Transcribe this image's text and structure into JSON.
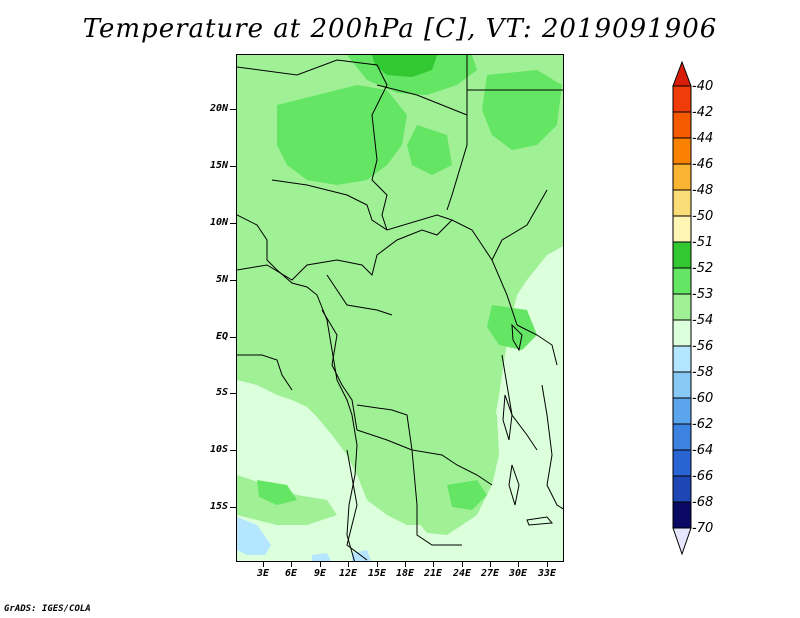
{
  "title": "Temperature at 200hPa [C], VT: 2019091906",
  "credit": "GrADS: IGES/COLA",
  "map": {
    "lat_labels": [
      "20N",
      "15N",
      "10N",
      "5N",
      "EQ",
      "5S",
      "10S",
      "15S"
    ],
    "lon_labels": [
      "3E",
      "6E",
      "9E",
      "12E",
      "15E",
      "18E",
      "21E",
      "24E",
      "27E",
      "30E",
      "33E"
    ]
  },
  "colorbar": {
    "labels": [
      "-40",
      "-42",
      "-44",
      "-46",
      "-48",
      "-50",
      "-51",
      "-52",
      "-53",
      "-54",
      "-56",
      "-58",
      "-60",
      "-62",
      "-64",
      "-66",
      "-68",
      "-70"
    ],
    "top_arrow_color": "#d81e0a",
    "bottom_arrow_color": "#e6e6ff",
    "colors": [
      "#f03c0a",
      "#f55a00",
      "#fa8200",
      "#fab432",
      "#fadc78",
      "#fff5b4",
      "#32c832",
      "#64e664",
      "#a0f096",
      "#dcffdc",
      "#b4e6ff",
      "#87c8f5",
      "#5aa5eb",
      "#3c82e1",
      "#2864d2",
      "#1e46b4",
      "#142d96",
      "#0a0a64"
    ],
    "fill_colors_in_map": {
      "le_-54": "#dcffdc",
      "-54_to_-53": "#a0f096",
      "-53_to_-52": "#64e664",
      "-52_to_-51": "#32c832",
      "le_-56": "#b4e6ff"
    }
  }
}
